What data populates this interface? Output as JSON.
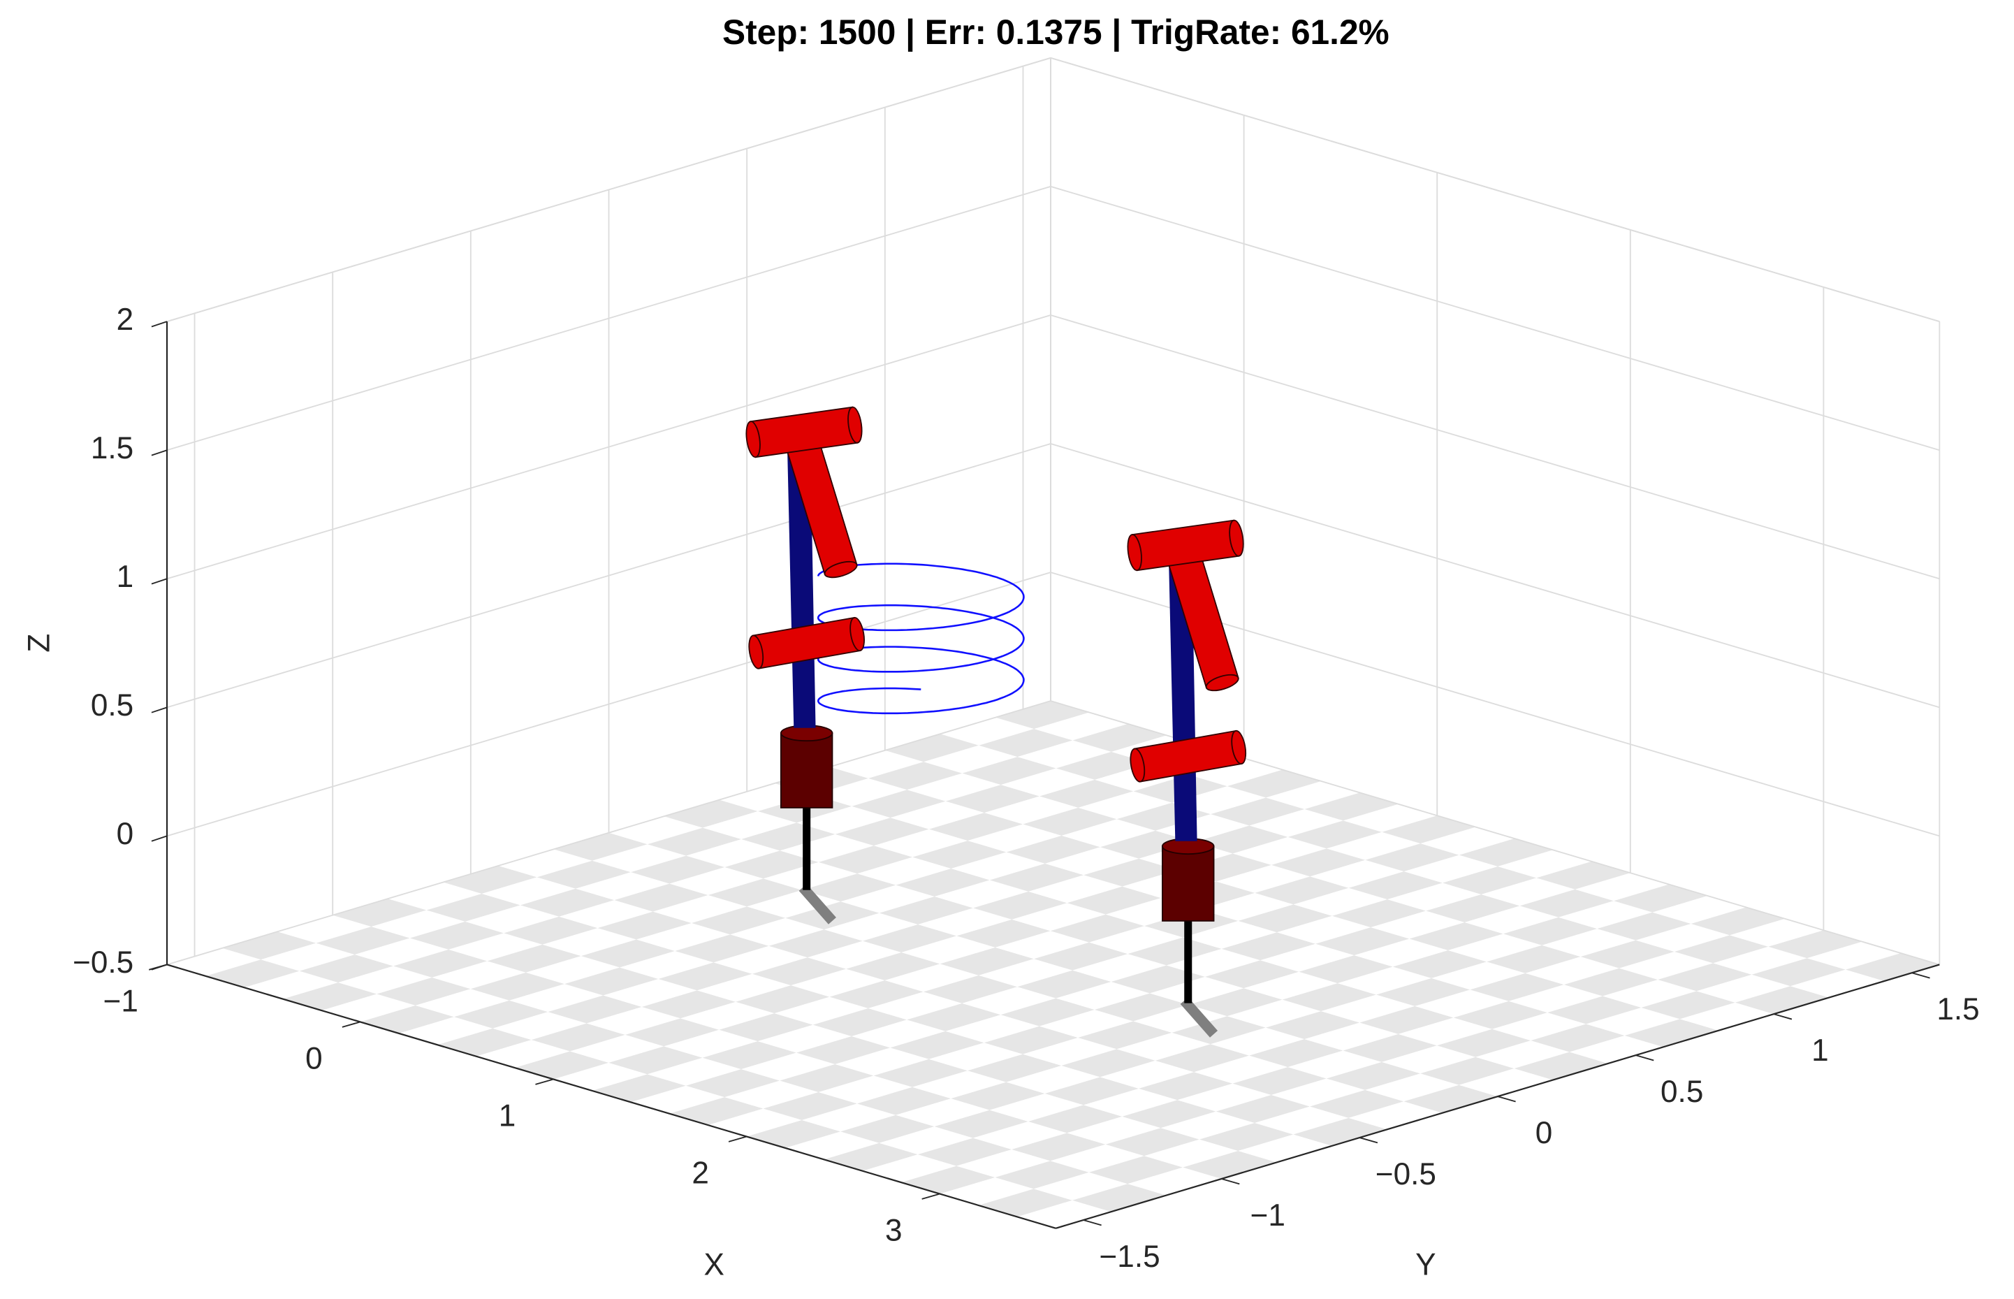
{
  "chart_data": {
    "type": "3d",
    "title": "Step: 1500 | Err: 0.1375 | TrigRate: 61.2%",
    "xlabel": "X",
    "ylabel": "Y",
    "zlabel": "Z",
    "xlim": [
      -1,
      3.6
    ],
    "ylim": [
      -1.6,
      1.6
    ],
    "zlim": [
      -0.5,
      2
    ],
    "xticks": [
      {
        "value": -1,
        "label": "−1"
      },
      0,
      1,
      2,
      3
    ],
    "yticks": [
      {
        "value": -1.5,
        "label": "−1.5"
      },
      {
        "value": -1,
        "label": "−1"
      },
      {
        "value": -0.5,
        "label": "−0.5"
      },
      0,
      0.5,
      1,
      1.5
    ],
    "zticks": [
      {
        "value": -0.5,
        "label": "−0.5"
      },
      0,
      0.5,
      1,
      1.5,
      2
    ],
    "grid": true
  }
}
